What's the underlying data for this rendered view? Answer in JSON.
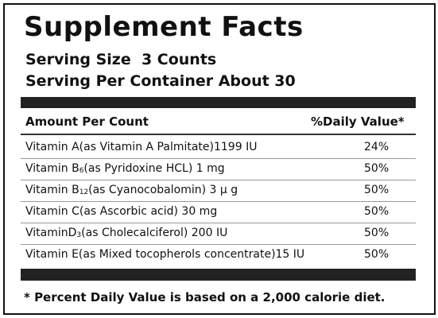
{
  "header": {
    "title": "Supplement Facts",
    "serving_size": "Serving Size  3 Counts",
    "servings": "Serving Per Container About 30"
  },
  "table": {
    "columns": [
      "Amount Per Count",
      "%Daily Value*"
    ],
    "rows": [
      {
        "name": "Vitamin A(as Vitamin A Palmitate)1199 IU",
        "dv": "24%"
      },
      {
        "name": "Vitamin B",
        "sub": "6",
        "rest": "(as Pyridoxine HCL) 1 mg",
        "dv": "50%"
      },
      {
        "name": "Vitamin B",
        "sub": "12",
        "rest": "(as Cyanocobalomin) 3 μ g",
        "dv": "50%"
      },
      {
        "name": "Vitamin C(as Ascorbic acid) 30 mg",
        "dv": "50%"
      },
      {
        "name": "VitaminD",
        "sub": "3",
        "rest": "(as Cholecalciferol) 200 IU",
        "dv": "50%"
      },
      {
        "name": "Vitamin E(as Mixed tocopherols concentrate)15 IU",
        "dv": "50%"
      }
    ]
  },
  "footnote": "* Percent Daily Value is based on a 2,000 calorie diet."
}
